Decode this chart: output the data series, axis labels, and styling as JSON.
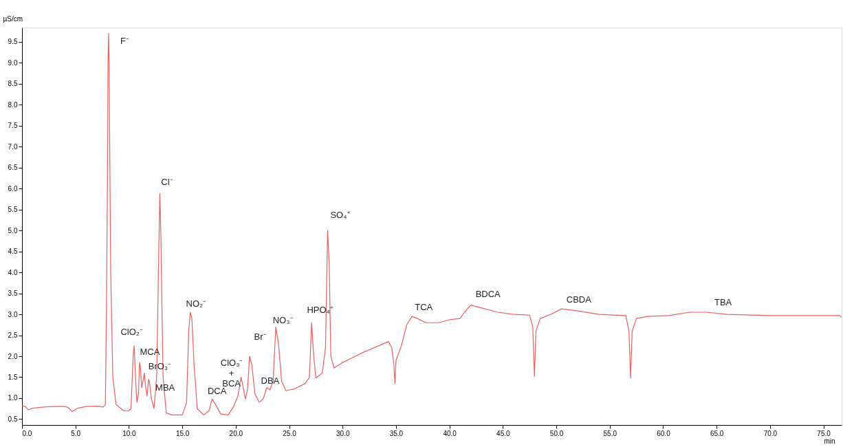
{
  "chart_data": {
    "type": "line",
    "xlabel": "min",
    "ylabel": "µS/cm",
    "x": [
      0.0,
      0.3,
      0.6,
      1.0,
      2,
      3,
      4,
      4.3,
      4.7,
      5.2,
      6,
      7,
      7.6,
      7.8,
      7.9,
      8.0,
      8.05,
      8.1,
      8.15,
      8.3,
      8.5,
      8.8,
      9.5,
      10.0,
      10.2,
      10.4,
      10.5,
      10.6,
      10.75,
      10.9,
      11.0,
      11.1,
      11.2,
      11.35,
      11.45,
      11.55,
      11.7,
      11.85,
      11.95,
      12.1,
      12.35,
      12.6,
      12.8,
      12.9,
      13.0,
      13.2,
      13.5,
      14,
      15,
      15.4,
      15.6,
      15.75,
      15.9,
      16.1,
      16.4,
      17,
      17.5,
      17.8,
      18.1,
      18.6,
      19.3,
      19.8,
      20.2,
      20.5,
      20.7,
      20.9,
      21.1,
      21.3,
      21.5,
      21.8,
      22.2,
      22.6,
      22.9,
      23.2,
      23.5,
      23.75,
      24.0,
      24.3,
      24.7,
      25.5,
      26.5,
      26.9,
      27.1,
      27.3,
      27.5,
      28.1,
      28.4,
      28.6,
      28.75,
      28.9,
      29.2,
      30,
      32,
      34.3,
      34.6,
      34.8,
      34.9,
      35.0,
      35.5,
      36.0,
      36.5,
      37,
      37.8,
      39,
      40,
      41,
      41.4,
      42.0,
      43,
      44.5,
      46,
      47.5,
      47.8,
      47.95,
      48.1,
      48.5,
      49.5,
      50.5,
      52,
      54,
      56.5,
      56.8,
      56.95,
      57.1,
      57.5,
      58.5,
      60.5,
      62.5,
      64,
      66,
      70,
      76.5,
      76.7
    ],
    "series": [
      {
        "color": "#e8605f",
        "values": [
          0.82,
          0.8,
          0.72,
          0.76,
          0.79,
          0.8,
          0.8,
          0.78,
          0.68,
          0.76,
          0.8,
          0.81,
          0.79,
          0.85,
          3.0,
          6.3,
          9.0,
          9.7,
          9.0,
          4.0,
          1.5,
          0.85,
          0.7,
          0.7,
          0.75,
          2.0,
          2.25,
          1.6,
          0.9,
          1.1,
          1.85,
          1.7,
          1.25,
          1.45,
          1.6,
          1.3,
          1.05,
          1.45,
          1.35,
          1.0,
          0.75,
          1.5,
          4.5,
          5.88,
          4.8,
          1.5,
          0.65,
          0.6,
          0.6,
          0.9,
          2.6,
          3.05,
          2.9,
          1.8,
          0.75,
          0.6,
          0.7,
          0.98,
          0.85,
          0.62,
          0.6,
          0.8,
          1.05,
          1.5,
          1.25,
          0.98,
          1.2,
          2.0,
          1.8,
          1.1,
          0.9,
          1.0,
          1.25,
          1.2,
          1.4,
          2.7,
          2.3,
          1.4,
          1.18,
          1.22,
          1.35,
          1.5,
          2.8,
          2.0,
          1.48,
          1.6,
          2.2,
          5.0,
          4.2,
          2.0,
          1.72,
          1.85,
          2.1,
          2.35,
          2.2,
          1.8,
          1.35,
          1.9,
          2.25,
          2.75,
          2.95,
          2.9,
          2.8,
          2.8,
          2.87,
          2.9,
          3.05,
          3.22,
          3.15,
          3.05,
          3.0,
          2.98,
          2.7,
          1.52,
          2.6,
          2.9,
          3.0,
          3.13,
          3.08,
          3.0,
          2.97,
          2.6,
          1.48,
          2.6,
          2.9,
          2.95,
          2.97,
          3.05,
          3.05,
          3.0,
          2.97,
          2.97,
          2.93
        ]
      }
    ],
    "xlim": [
      0,
      76.7
    ],
    "ylim": [
      0.36,
      9.84
    ],
    "xticks": [
      {
        "value": 0,
        "label": "0.0"
      },
      {
        "value": 5,
        "label": "5.0"
      },
      {
        "value": 10,
        "label": "10.0"
      },
      {
        "value": 15,
        "label": "15.0"
      },
      {
        "value": 20,
        "label": "20.0"
      },
      {
        "value": 25,
        "label": "25.0"
      },
      {
        "value": 30,
        "label": "30.0"
      },
      {
        "value": 35,
        "label": "35.0"
      },
      {
        "value": 40,
        "label": "40.0"
      },
      {
        "value": 45,
        "label": "45.0"
      },
      {
        "value": 50,
        "label": "50.0"
      },
      {
        "value": 55,
        "label": "55.0"
      },
      {
        "value": 60,
        "label": "60.0"
      },
      {
        "value": 65,
        "label": "65.0"
      },
      {
        "value": 70,
        "label": "70.0"
      },
      {
        "value": 75,
        "label": "75.0"
      }
    ],
    "yticks": [
      0.5,
      {
        "value": 1,
        "label": "1.0"
      },
      1.5,
      {
        "value": 2,
        "label": "2.0"
      },
      2.5,
      {
        "value": 3,
        "label": "3.0"
      },
      3.5,
      {
        "value": 4,
        "label": "4.0"
      },
      4.5,
      {
        "value": 5,
        "label": "5.0"
      },
      5.5,
      {
        "value": 6,
        "label": "6.0"
      },
      6.5,
      {
        "value": 7,
        "label": "7.0"
      },
      7.5,
      {
        "value": 8,
        "label": "8.0"
      },
      8.5,
      {
        "value": 9,
        "label": "9.0"
      },
      9.5
    ],
    "grid": false,
    "marker": "none",
    "line_style": "solid",
    "annotations": [
      {
        "text": "F⁻",
        "x": 8.1,
        "y": 9.7
      },
      {
        "text": "Cl⁻",
        "x": 12.9,
        "y": 5.88
      },
      {
        "text": "ClO₂⁻",
        "x": 10.5,
        "y": 2.25
      },
      {
        "text": "MCA",
        "x": 11.0,
        "y": 1.85
      },
      {
        "text": "BrO₃⁻",
        "x": 11.45,
        "y": 1.6
      },
      {
        "text": "MBA",
        "x": 11.85,
        "y": 1.45
      },
      {
        "text": "NO₂⁻",
        "x": 15.75,
        "y": 3.05
      },
      {
        "text": "DCA",
        "x": 17.8,
        "y": 0.98
      },
      {
        "text": "ClO₃⁻\n+\nBCA",
        "x": 20.5,
        "y": 1.5
      },
      {
        "text": "Br⁻",
        "x": 21.3,
        "y": 2.0
      },
      {
        "text": "DBA",
        "x": 22.9,
        "y": 1.25
      },
      {
        "text": "NO₃⁻",
        "x": 23.75,
        "y": 2.7
      },
      {
        "text": "HPO₄⁼",
        "x": 27.1,
        "y": 2.8
      },
      {
        "text": "SO₄⁼",
        "x": 28.6,
        "y": 5.0
      },
      {
        "text": "TCA",
        "x": 36.5,
        "y": 2.95
      },
      {
        "text": "BDCA",
        "x": 42.0,
        "y": 3.22
      },
      {
        "text": "CBDA",
        "x": 50.5,
        "y": 3.13
      },
      {
        "text": "TBA",
        "x": 64,
        "y": 3.05
      }
    ]
  }
}
